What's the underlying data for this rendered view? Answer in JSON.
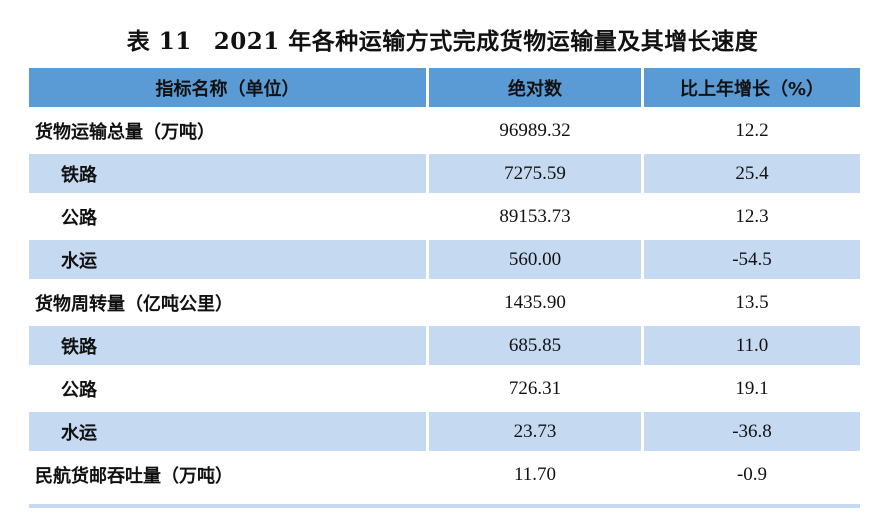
{
  "title": {
    "label": "表 11",
    "text": "2021 年各种运输方式完成货物运输量及其增长速度"
  },
  "table": {
    "headers": [
      "指标名称（单位）",
      "绝对数",
      "比上年增长（%）"
    ],
    "rows": [
      {
        "name": "货物运输总量（万吨）",
        "value": "96989.32",
        "growth": "12.2",
        "level": 0,
        "shaded": false
      },
      {
        "name": "铁路",
        "value": "7275.59",
        "growth": "25.4",
        "level": 1,
        "shaded": true
      },
      {
        "name": "公路",
        "value": "89153.73",
        "growth": "12.3",
        "level": 1,
        "shaded": false
      },
      {
        "name": "水运",
        "value": "560.00",
        "growth": "-54.5",
        "level": 1,
        "shaded": true
      },
      {
        "name": "货物周转量（亿吨公里）",
        "value": "1435.90",
        "growth": "13.5",
        "level": 0,
        "shaded": false
      },
      {
        "name": "铁路",
        "value": "685.85",
        "growth": "11.0",
        "level": 1,
        "shaded": true
      },
      {
        "name": "公路",
        "value": "726.31",
        "growth": "19.1",
        "level": 1,
        "shaded": false
      },
      {
        "name": "水运",
        "value": "23.73",
        "growth": "-36.8",
        "level": 1,
        "shaded": true
      },
      {
        "name": "民航货邮吞吐量（万吨）",
        "value": "11.70",
        "growth": "-0.9",
        "level": 0,
        "shaded": false
      }
    ]
  },
  "colors": {
    "header_bg": "#5b9bd5",
    "shaded_row_bg": "#c5d9f1"
  }
}
